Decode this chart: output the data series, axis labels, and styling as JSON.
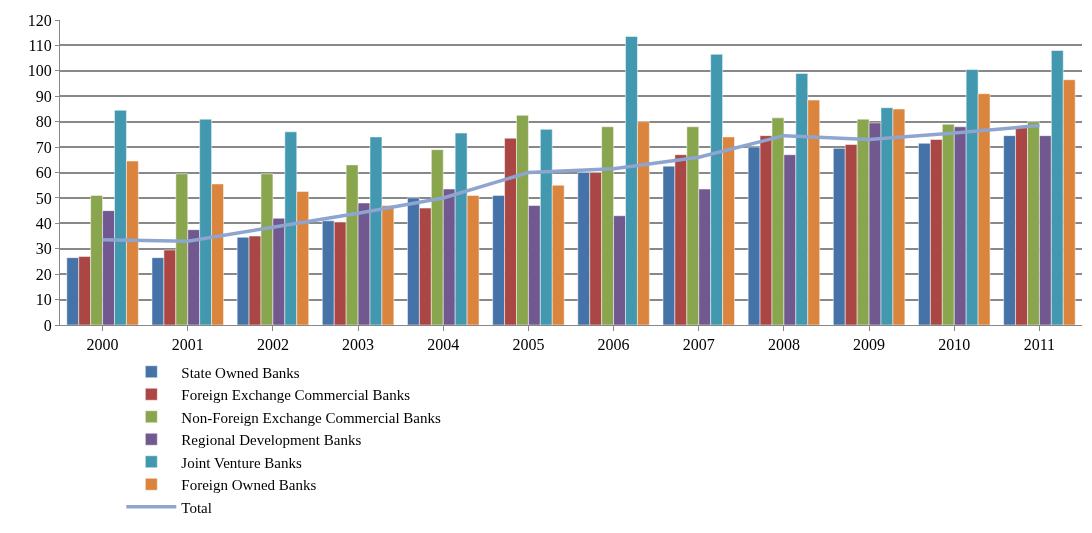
{
  "chart_data": {
    "type": "bar",
    "categories": [
      "2000",
      "2001",
      "2002",
      "2003",
      "2004",
      "2005",
      "2006",
      "2007",
      "2008",
      "2009",
      "2010",
      "2011"
    ],
    "series": [
      {
        "name": "State Owned Banks",
        "color": "#4572a7",
        "values": [
          26.5,
          26.5,
          34.5,
          41,
          50,
          51,
          60,
          62.5,
          70,
          69.5,
          71.5,
          74.5
        ]
      },
      {
        "name": "Foreign Exchange Commercial Banks",
        "color": "#aa4643",
        "values": [
          27,
          29.5,
          35,
          40.5,
          46,
          73.5,
          60,
          67,
          74.5,
          71,
          73,
          78
        ]
      },
      {
        "name": "Non-Foreign Exchange Commercial Banks",
        "color": "#89a54e",
        "values": [
          51,
          59.5,
          59.5,
          63,
          69,
          82.5,
          78,
          78,
          81.5,
          81,
          79,
          80
        ]
      },
      {
        "name": "Regional Development Banks",
        "color": "#71588f",
        "values": [
          45,
          37.5,
          42,
          48,
          53.5,
          47,
          43,
          53.5,
          67,
          79.5,
          78,
          74.5
        ]
      },
      {
        "name": "Joint Venture Banks",
        "color": "#4198af",
        "values": [
          84.5,
          81,
          76,
          74,
          75.5,
          77,
          113.5,
          106.5,
          99,
          85.5,
          100.5,
          108
        ]
      },
      {
        "name": "Foreign Owned Banks",
        "color": "#db843d",
        "values": [
          64.5,
          55.5,
          52.5,
          47,
          51,
          55,
          80,
          74,
          88.5,
          85,
          91,
          96.5
        ]
      },
      {
        "name": "Total",
        "type": "line",
        "color": "#8ea5d0",
        "values": [
          33.5,
          33,
          38.5,
          44,
          50,
          60,
          61.5,
          66,
          74.5,
          73,
          75.5,
          78.5
        ]
      }
    ],
    "ylim": [
      0,
      120
    ],
    "yticks": [
      0,
      10,
      20,
      30,
      40,
      50,
      60,
      70,
      80,
      90,
      100,
      110,
      120
    ],
    "grid": "y",
    "legend": "bottom"
  }
}
